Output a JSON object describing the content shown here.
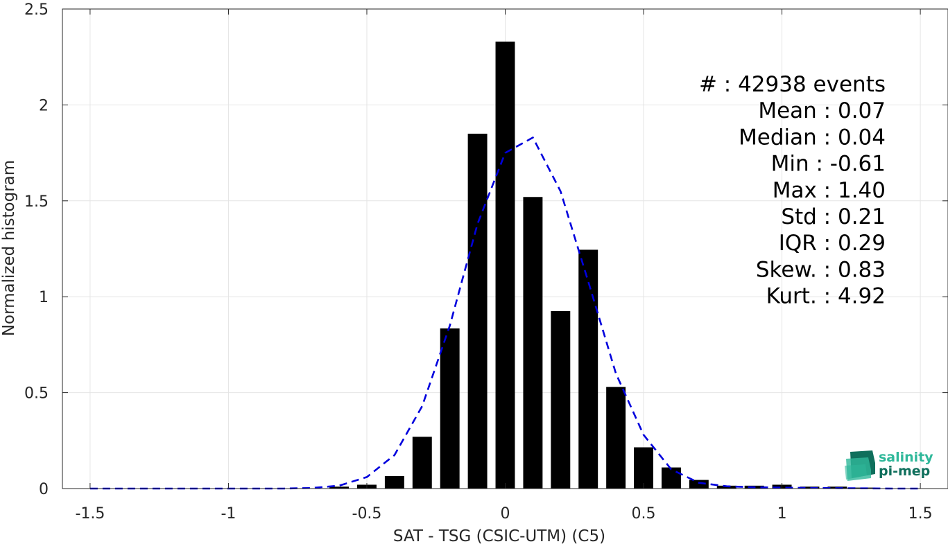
{
  "chart_data": {
    "type": "bar",
    "title": "",
    "xlabel": "SAT - TSG (CSIC-UTM) (C5)",
    "ylabel": "Normalized histogram",
    "xlim": [
      -1.6,
      1.6
    ],
    "ylim": [
      0,
      2.5
    ],
    "xticks": [
      -1.5,
      -1,
      -0.5,
      0,
      0.5,
      1,
      1.5
    ],
    "xtick_labels": [
      "-1.5",
      "-1",
      "-0.5",
      "0",
      "0.5",
      "1",
      "1.5"
    ],
    "yticks": [
      0,
      0.5,
      1,
      1.5,
      2,
      2.5
    ],
    "ytick_labels": [
      "0",
      "0.5",
      "1",
      "1.5",
      "2",
      "2.5"
    ],
    "grid": true,
    "bar_width": 0.07,
    "bar_color": "#000000",
    "bars": {
      "x": [
        -0.6,
        -0.5,
        -0.4,
        -0.3,
        -0.2,
        -0.1,
        0.0,
        0.1,
        0.2,
        0.3,
        0.4,
        0.5,
        0.6,
        0.7,
        0.8,
        0.9,
        1.0,
        1.1,
        1.2,
        1.3
      ],
      "values": [
        0.01,
        0.02,
        0.065,
        0.27,
        0.835,
        1.85,
        2.33,
        1.52,
        0.925,
        1.245,
        0.53,
        0.215,
        0.11,
        0.045,
        0.015,
        0.015,
        0.02,
        0.01,
        0.01,
        0.005
      ]
    },
    "fit_curve": {
      "style": "dashed",
      "color": "#0000dd",
      "x": [
        -1.5,
        -1.4,
        -1.3,
        -1.2,
        -1.1,
        -1.0,
        -0.9,
        -0.8,
        -0.7,
        -0.6,
        -0.5,
        -0.4,
        -0.3,
        -0.2,
        -0.1,
        0.0,
        0.1,
        0.2,
        0.3,
        0.4,
        0.5,
        0.6,
        0.7,
        0.8,
        0.9,
        1.0,
        1.1,
        1.2,
        1.3,
        1.4,
        1.5
      ],
      "y": [
        0.0,
        0.0,
        0.0,
        0.0,
        0.0,
        0.0,
        0.0,
        0.0,
        0.003,
        0.015,
        0.06,
        0.175,
        0.43,
        0.85,
        1.38,
        1.75,
        1.83,
        1.55,
        1.08,
        0.6,
        0.28,
        0.1,
        0.03,
        0.012,
        0.007,
        0.005,
        0.003,
        0.002,
        0.001,
        0.0,
        0.0
      ]
    },
    "stats": [
      "#  : 42938 events",
      "Mean : 0.07",
      "Median : 0.04",
      "Min : -0.61",
      "Max : 1.40",
      "Std : 0.21",
      "IQR : 0.29",
      "Skew. : 0.83",
      "Kurt. : 4.92"
    ]
  },
  "logo": {
    "line1": "salinity",
    "line2": "pi-mep",
    "color_dark": "#0f6f5c",
    "color_light": "#2fb89a"
  }
}
